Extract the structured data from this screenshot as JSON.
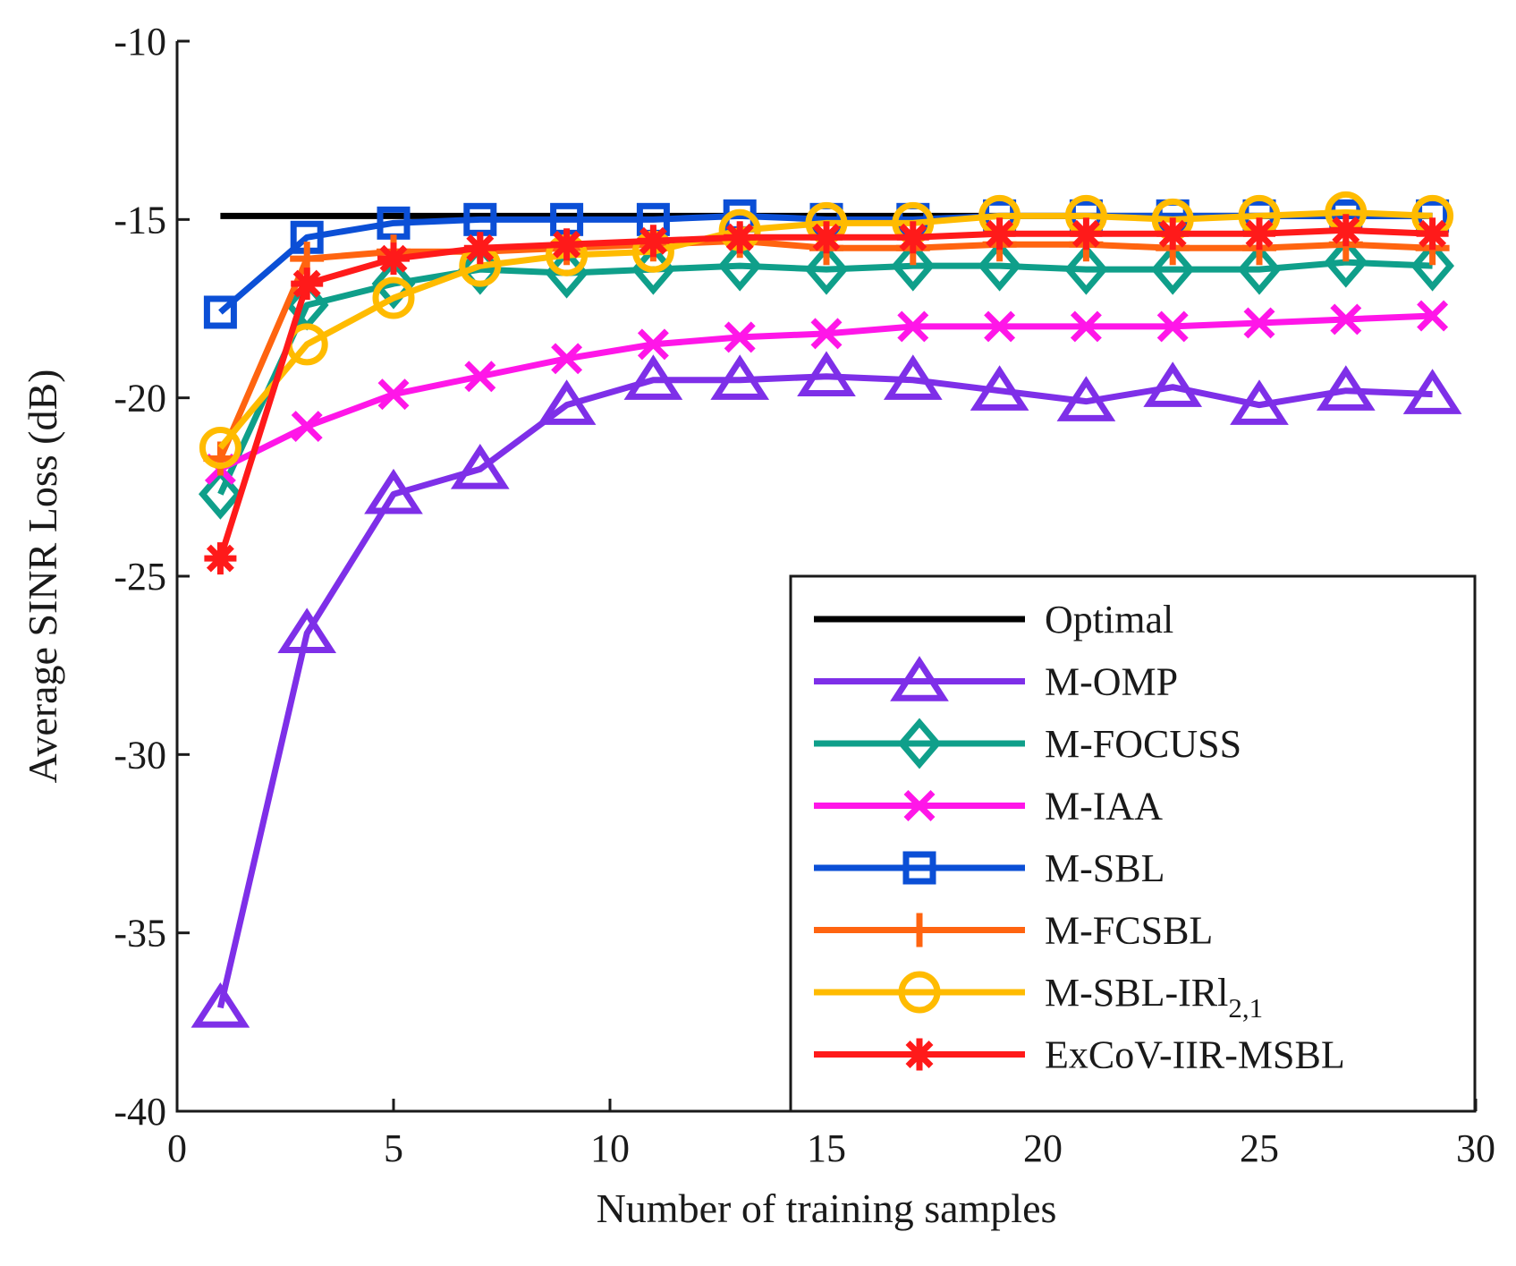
{
  "chart_data": {
    "type": "line",
    "title": "",
    "xlabel": "Number of training samples",
    "ylabel": "Average SINR Loss (dB)",
    "xlim": [
      0,
      30
    ],
    "ylim": [
      -40,
      -10
    ],
    "xticks": [
      0,
      5,
      10,
      15,
      20,
      25,
      30
    ],
    "yticks": [
      -10,
      -15,
      -20,
      -25,
      -30,
      -35,
      -40
    ],
    "x": [
      1,
      3,
      5,
      7,
      9,
      11,
      13,
      15,
      17,
      19,
      21,
      23,
      25,
      27,
      29
    ],
    "legend_position": "bottom-right",
    "series": [
      {
        "name": "Optimal",
        "color": "#000000",
        "marker": "none",
        "values": [
          -14.9,
          -14.9,
          -14.9,
          -14.9,
          -14.9,
          -14.9,
          -14.9,
          -14.9,
          -14.9,
          -14.9,
          -14.9,
          -14.9,
          -14.9,
          -14.9,
          -14.9
        ]
      },
      {
        "name": "M-OMP",
        "color": "#7e2fe8",
        "marker": "triangle",
        "values": [
          -37.1,
          -26.6,
          -22.7,
          -22.0,
          -20.2,
          -19.5,
          -19.5,
          -19.4,
          -19.5,
          -19.8,
          -20.1,
          -19.7,
          -20.2,
          -19.8,
          -19.9
        ]
      },
      {
        "name": "M-FOCUSS",
        "color": "#0f9f8a",
        "marker": "diamond",
        "values": [
          -22.7,
          -17.4,
          -16.8,
          -16.4,
          -16.5,
          -16.4,
          -16.3,
          -16.4,
          -16.3,
          -16.3,
          -16.4,
          -16.4,
          -16.4,
          -16.2,
          -16.3
        ]
      },
      {
        "name": "M-IAA",
        "color": "#ff16e8",
        "marker": "x",
        "values": [
          -22.0,
          -20.8,
          -19.9,
          -19.4,
          -18.9,
          -18.5,
          -18.3,
          -18.2,
          -18.0,
          -18.0,
          -18.0,
          -18.0,
          -17.9,
          -17.8,
          -17.7
        ]
      },
      {
        "name": "M-SBL",
        "color": "#0b4fd6",
        "marker": "square",
        "values": [
          -17.6,
          -15.5,
          -15.1,
          -15.0,
          -15.0,
          -15.0,
          -14.9,
          -15.0,
          -15.0,
          -14.9,
          -14.9,
          -14.9,
          -14.9,
          -14.9,
          -14.9
        ]
      },
      {
        "name": "M-FCSBL",
        "color": "#ff6410",
        "marker": "plus",
        "values": [
          -21.7,
          -16.1,
          -15.9,
          -15.9,
          -15.8,
          -15.7,
          -15.6,
          -15.8,
          -15.8,
          -15.7,
          -15.7,
          -15.8,
          -15.8,
          -15.7,
          -15.8
        ]
      },
      {
        "name": "M-SBL-IRl2,1",
        "color": "#ffbb00",
        "marker": "circle",
        "values": [
          -21.4,
          -18.5,
          -17.2,
          -16.3,
          -16.0,
          -15.9,
          -15.3,
          -15.1,
          -15.1,
          -14.9,
          -14.9,
          -15.0,
          -14.9,
          -14.8,
          -14.9
        ]
      },
      {
        "name": "ExCoV-IIR-MSBL",
        "color": "#ff1a1a",
        "marker": "asterisk",
        "values": [
          -24.5,
          -16.8,
          -16.1,
          -15.8,
          -15.7,
          -15.6,
          -15.5,
          -15.5,
          -15.5,
          -15.4,
          -15.4,
          -15.4,
          -15.4,
          -15.3,
          -15.4
        ]
      }
    ]
  }
}
